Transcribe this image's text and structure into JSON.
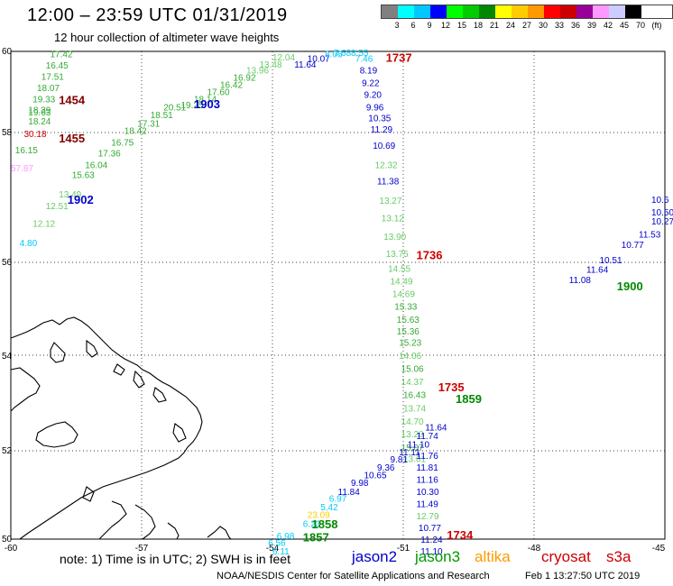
{
  "header": {
    "title": "12:00 – 23:59 UTC 01/31/2019",
    "subtitle": "12 hour collection of altimeter wave heights"
  },
  "colorbar": {
    "colors": [
      "#808080",
      "#00ffff",
      "#00c8ff",
      "#0000ff",
      "#00ff00",
      "#00cc00",
      "#008800",
      "#ffff00",
      "#ffcc00",
      "#ff9900",
      "#ff0000",
      "#cc0000",
      "#990099",
      "#ff99ff",
      "#ccccff",
      "#000000"
    ],
    "labels": [
      "3",
      "6",
      "9",
      "12",
      "15",
      "18",
      "21",
      "24",
      "27",
      "30",
      "33",
      "36",
      "39",
      "42",
      "45",
      "70",
      "(ft)"
    ]
  },
  "axes": {
    "lon_ticks": [
      "-60",
      "-57",
      "-54",
      "-51",
      "-48",
      "-45"
    ],
    "lat_ticks": [
      "50",
      "52",
      "54",
      "56",
      "58",
      "60"
    ]
  },
  "note": "note: 1) Time is in UTC; 2) SWH is in feet",
  "legend": [
    {
      "name": "jason2",
      "color": "#0000cc"
    },
    {
      "name": "jason3",
      "color": "#009900"
    },
    {
      "name": "altika",
      "color": "#ff9900"
    },
    {
      "name": "cryosat",
      "color": "#cc0000"
    },
    {
      "name": "s3a",
      "color": "#cc0000"
    }
  ],
  "footer": {
    "source": "NOAA/NESDIS Center for Satellite Applications and Research",
    "date": "Feb  1 13:27:50 UTC 2019"
  },
  "tracks": [
    {
      "time_label": "1454",
      "color": "#800000",
      "lon": -58.9,
      "lat": 58.7
    },
    {
      "time_label": "1455",
      "color": "#800000",
      "lon": -58.9,
      "lat": 57.85
    },
    {
      "time_label": "1902",
      "color": "#0000cc",
      "lon": -58.7,
      "lat": 56.9
    },
    {
      "time_label": "1903",
      "color": "#0000cc",
      "lon": -55.8,
      "lat": 58.6
    },
    {
      "time_label": "1737",
      "color": "#cc0000",
      "lon": -51.4,
      "lat": 59.75
    },
    {
      "time_label": "1736",
      "color": "#cc0000",
      "lon": -50.7,
      "lat": 56.05
    },
    {
      "time_label": "1735",
      "color": "#cc0000",
      "lon": -50.2,
      "lat": 53.25
    },
    {
      "time_label": "1734",
      "color": "#cc0000",
      "lon": -50.0,
      "lat": 50.0
    },
    {
      "time_label": "1900",
      "color": "#008800",
      "lon": -46.1,
      "lat": 55.4
    },
    {
      "time_label": "1859",
      "color": "#008800",
      "lon": -49.8,
      "lat": 53.0
    },
    {
      "time_label": "1858",
      "color": "#008800",
      "lon": -53.1,
      "lat": 50.25
    },
    {
      "time_label": "1857",
      "color": "#008800",
      "lon": -53.3,
      "lat": 49.95
    }
  ],
  "values": [
    {
      "v": "17.42",
      "c": "#33aa33",
      "lon": -59.1,
      "lat": 59.85
    },
    {
      "v": "16.45",
      "c": "#33aa33",
      "lon": -59.2,
      "lat": 59.58
    },
    {
      "v": "17.51",
      "c": "#33aa33",
      "lon": -59.3,
      "lat": 59.3
    },
    {
      "v": "18.07",
      "c": "#33aa33",
      "lon": -59.4,
      "lat": 59.02
    },
    {
      "v": "19.33",
      "c": "#33aa33",
      "lon": -59.5,
      "lat": 58.75
    },
    {
      "v": "18.39",
      "c": "#33aa33",
      "lon": -59.6,
      "lat": 58.48
    },
    {
      "v": "19.63",
      "c": "#33aa33",
      "lon": -59.6,
      "lat": 58.42
    },
    {
      "v": "18.24",
      "c": "#33aa33",
      "lon": -59.6,
      "lat": 58.2
    },
    {
      "v": "30.18",
      "c": "#cc0000",
      "lon": -59.7,
      "lat": 57.93
    },
    {
      "v": "16.15",
      "c": "#33aa33",
      "lon": -59.9,
      "lat": 57.68
    },
    {
      "v": "57.87",
      "c": "#ff99ff",
      "lon": -60.0,
      "lat": 57.4
    },
    {
      "v": "12.12",
      "c": "#66cc66",
      "lon": -59.5,
      "lat": 56.55
    },
    {
      "v": "4.80",
      "c": "#00c8ff",
      "lon": -59.8,
      "lat": 56.25
    },
    {
      "v": "12.51",
      "c": "#66cc66",
      "lon": -59.2,
      "lat": 56.82
    },
    {
      "v": "13.49",
      "c": "#66cc66",
      "lon": -58.9,
      "lat": 57.0
    },
    {
      "v": "15.63",
      "c": "#33aa33",
      "lon": -58.6,
      "lat": 57.3
    },
    {
      "v": "16.04",
      "c": "#33aa33",
      "lon": -58.3,
      "lat": 57.45
    },
    {
      "v": "17.36",
      "c": "#33aa33",
      "lon": -58.0,
      "lat": 57.63
    },
    {
      "v": "16.75",
      "c": "#33aa33",
      "lon": -57.7,
      "lat": 57.8
    },
    {
      "v": "18.42",
      "c": "#33aa33",
      "lon": -57.4,
      "lat": 57.98
    },
    {
      "v": "17.31",
      "c": "#33aa33",
      "lon": -57.1,
      "lat": 58.15
    },
    {
      "v": "18.51",
      "c": "#33aa33",
      "lon": -56.8,
      "lat": 58.35
    },
    {
      "v": "20.51",
      "c": "#33aa33",
      "lon": -56.5,
      "lat": 58.55
    },
    {
      "v": "19.25",
      "c": "#33aa33",
      "lon": -56.1,
      "lat": 58.6
    },
    {
      "v": "18.14",
      "c": "#33aa33",
      "lon": -55.8,
      "lat": 58.75
    },
    {
      "v": "17.60",
      "c": "#33aa33",
      "lon": -55.5,
      "lat": 58.92
    },
    {
      "v": "16.42",
      "c": "#33aa33",
      "lon": -55.2,
      "lat": 59.1
    },
    {
      "v": "16.92",
      "c": "#33aa33",
      "lon": -54.9,
      "lat": 59.28
    },
    {
      "v": "13.96",
      "c": "#66cc66",
      "lon": -54.6,
      "lat": 59.45
    },
    {
      "v": "13.48",
      "c": "#66cc66",
      "lon": -54.3,
      "lat": 59.6
    },
    {
      "v": "12.04",
      "c": "#66cc66",
      "lon": -54.0,
      "lat": 59.78
    },
    {
      "v": "11.64",
      "c": "#0000cc",
      "lon": -53.5,
      "lat": 59.6
    },
    {
      "v": "10.07",
      "c": "#0000cc",
      "lon": -53.2,
      "lat": 59.75
    },
    {
      "v": "8.06",
      "c": "#00c8ff",
      "lon": -52.8,
      "lat": 59.85
    },
    {
      "v": "7.68",
      "c": "#00c8ff",
      "lon": -52.6,
      "lat": 60.0
    },
    {
      "v": "8.55",
      "c": "#00c8ff",
      "lon": -52.2,
      "lat": 60.0
    },
    {
      "v": "7.46",
      "c": "#00c8ff",
      "lon": -52.1,
      "lat": 59.75
    },
    {
      "v": "8.19",
      "c": "#0000cc",
      "lon": -52.0,
      "lat": 59.45
    },
    {
      "v": "9.22",
      "c": "#0000cc",
      "lon": -51.95,
      "lat": 59.15
    },
    {
      "v": "9.20",
      "c": "#0000cc",
      "lon": -51.9,
      "lat": 58.85
    },
    {
      "v": "9.96",
      "c": "#0000cc",
      "lon": -51.85,
      "lat": 58.55
    },
    {
      "v": "10.35",
      "c": "#0000cc",
      "lon": -51.8,
      "lat": 58.28
    },
    {
      "v": "11.29",
      "c": "#0000cc",
      "lon": -51.75,
      "lat": 58.0
    },
    {
      "v": "10.69",
      "c": "#0000cc",
      "lon": -51.7,
      "lat": 57.75
    },
    {
      "v": "12.32",
      "c": "#66cc66",
      "lon": -51.65,
      "lat": 57.45
    },
    {
      "v": "11.38",
      "c": "#0000cc",
      "lon": -51.6,
      "lat": 57.2
    },
    {
      "v": "13.27",
      "c": "#66cc66",
      "lon": -51.55,
      "lat": 56.9
    },
    {
      "v": "13.12",
      "c": "#66cc66",
      "lon": -51.5,
      "lat": 56.63
    },
    {
      "v": "13.90",
      "c": "#66cc66",
      "lon": -51.45,
      "lat": 56.35
    },
    {
      "v": "13.75",
      "c": "#66cc66",
      "lon": -51.4,
      "lat": 56.08
    },
    {
      "v": "14.55",
      "c": "#66cc66",
      "lon": -51.35,
      "lat": 55.8
    },
    {
      "v": "14.49",
      "c": "#66cc66",
      "lon": -51.3,
      "lat": 55.52
    },
    {
      "v": "14.69",
      "c": "#66cc66",
      "lon": -51.25,
      "lat": 55.25
    },
    {
      "v": "15.33",
      "c": "#33aa33",
      "lon": -51.2,
      "lat": 54.98
    },
    {
      "v": "15.63",
      "c": "#33aa33",
      "lon": -51.15,
      "lat": 54.7
    },
    {
      "v": "15.36",
      "c": "#33aa33",
      "lon": -51.15,
      "lat": 54.45
    },
    {
      "v": "15.23",
      "c": "#33aa33",
      "lon": -51.1,
      "lat": 54.2
    },
    {
      "v": "14.06",
      "c": "#66cc66",
      "lon": -51.1,
      "lat": 53.92
    },
    {
      "v": "15.06",
      "c": "#33aa33",
      "lon": -51.05,
      "lat": 53.65
    },
    {
      "v": "14.37",
      "c": "#66cc66",
      "lon": -51.05,
      "lat": 53.38
    },
    {
      "v": "16.43",
      "c": "#33aa33",
      "lon": -51.0,
      "lat": 53.1
    },
    {
      "v": "13.74",
      "c": "#66cc66",
      "lon": -51.0,
      "lat": 52.82
    },
    {
      "v": "14.70",
      "c": "#66cc66",
      "lon": -51.05,
      "lat": 52.55
    },
    {
      "v": "13.20",
      "c": "#66cc66",
      "lon": -51.05,
      "lat": 52.28
    },
    {
      "v": "15.07",
      "c": "#33aa33",
      "lon": -51.05,
      "lat": 52.0
    },
    {
      "v": "13.61",
      "c": "#66cc66",
      "lon": -51.0,
      "lat": 51.75
    },
    {
      "v": "11.76",
      "c": "#0000cc",
      "lon": -50.7,
      "lat": 51.82
    },
    {
      "v": "11.81",
      "c": "#0000cc",
      "lon": -50.7,
      "lat": 51.55
    },
    {
      "v": "11.16",
      "c": "#0000cc",
      "lon": -50.7,
      "lat": 51.28
    },
    {
      "v": "10.30",
      "c": "#0000cc",
      "lon": -50.7,
      "lat": 51.0
    },
    {
      "v": "11.49",
      "c": "#0000cc",
      "lon": -50.7,
      "lat": 50.72
    },
    {
      "v": "12.79",
      "c": "#66cc66",
      "lon": -50.7,
      "lat": 50.45
    },
    {
      "v": "10.77",
      "c": "#0000cc",
      "lon": -50.65,
      "lat": 50.18
    },
    {
      "v": "11.24",
      "c": "#0000cc",
      "lon": -50.6,
      "lat": 49.92
    },
    {
      "v": "11.10",
      "c": "#0000cc",
      "lon": -50.6,
      "lat": 49.65
    },
    {
      "v": "11.64",
      "c": "#0000cc",
      "lon": -50.5,
      "lat": 52.42
    },
    {
      "v": "11.74",
      "c": "#0000cc",
      "lon": -50.7,
      "lat": 52.25
    },
    {
      "v": "11.10",
      "c": "#0000cc",
      "lon": -50.9,
      "lat": 52.07
    },
    {
      "v": "11.11",
      "c": "#0000cc",
      "lon": -51.1,
      "lat": 51.9
    },
    {
      "v": "9.81",
      "c": "#0000cc",
      "lon": -51.3,
      "lat": 51.73
    },
    {
      "v": "9.36",
      "c": "#0000cc",
      "lon": -51.6,
      "lat": 51.55
    },
    {
      "v": "10.65",
      "c": "#0000cc",
      "lon": -51.9,
      "lat": 51.38
    },
    {
      "v": "9.98",
      "c": "#0000cc",
      "lon": -52.2,
      "lat": 51.2
    },
    {
      "v": "11.84",
      "c": "#0000cc",
      "lon": -52.5,
      "lat": 51.0
    },
    {
      "v": "6.97",
      "c": "#00c8ff",
      "lon": -52.7,
      "lat": 50.85
    },
    {
      "v": "5.42",
      "c": "#00c8ff",
      "lon": -52.9,
      "lat": 50.65
    },
    {
      "v": "23.09",
      "c": "#ffcc00",
      "lon": -53.2,
      "lat": 50.48
    },
    {
      "v": "6.23",
      "c": "#00c8ff",
      "lon": -53.3,
      "lat": 50.28
    },
    {
      "v": "6.98",
      "c": "#00c8ff",
      "lon": -53.9,
      "lat": 50.0
    },
    {
      "v": "6.56",
      "c": "#00c8ff",
      "lon": -54.1,
      "lat": 49.85
    },
    {
      "v": "6.11",
      "c": "#00c8ff",
      "lon": -54.0,
      "lat": 49.65
    },
    {
      "v": "10.51",
      "c": "#0000cc",
      "lon": -46.5,
      "lat": 55.98
    },
    {
      "v": "10.77",
      "c": "#0000cc",
      "lon": -46.0,
      "lat": 56.22
    },
    {
      "v": "11.53",
      "c": "#0000cc",
      "lon": -45.6,
      "lat": 56.38
    },
    {
      "v": "10.27",
      "c": "#0000cc",
      "lon": -45.2,
      "lat": 56.58
    },
    {
      "v": "10.50",
      "c": "#0000cc",
      "lon": -45.0,
      "lat": 56.72
    },
    {
      "v": "10.6",
      "c": "#0000cc",
      "lon": -44.9,
      "lat": 56.92
    },
    {
      "v": "11.64",
      "c": "#0000cc",
      "lon": -46.8,
      "lat": 55.78
    },
    {
      "v": "11.08",
      "c": "#0000cc",
      "lon": -47.2,
      "lat": 55.55
    }
  ]
}
